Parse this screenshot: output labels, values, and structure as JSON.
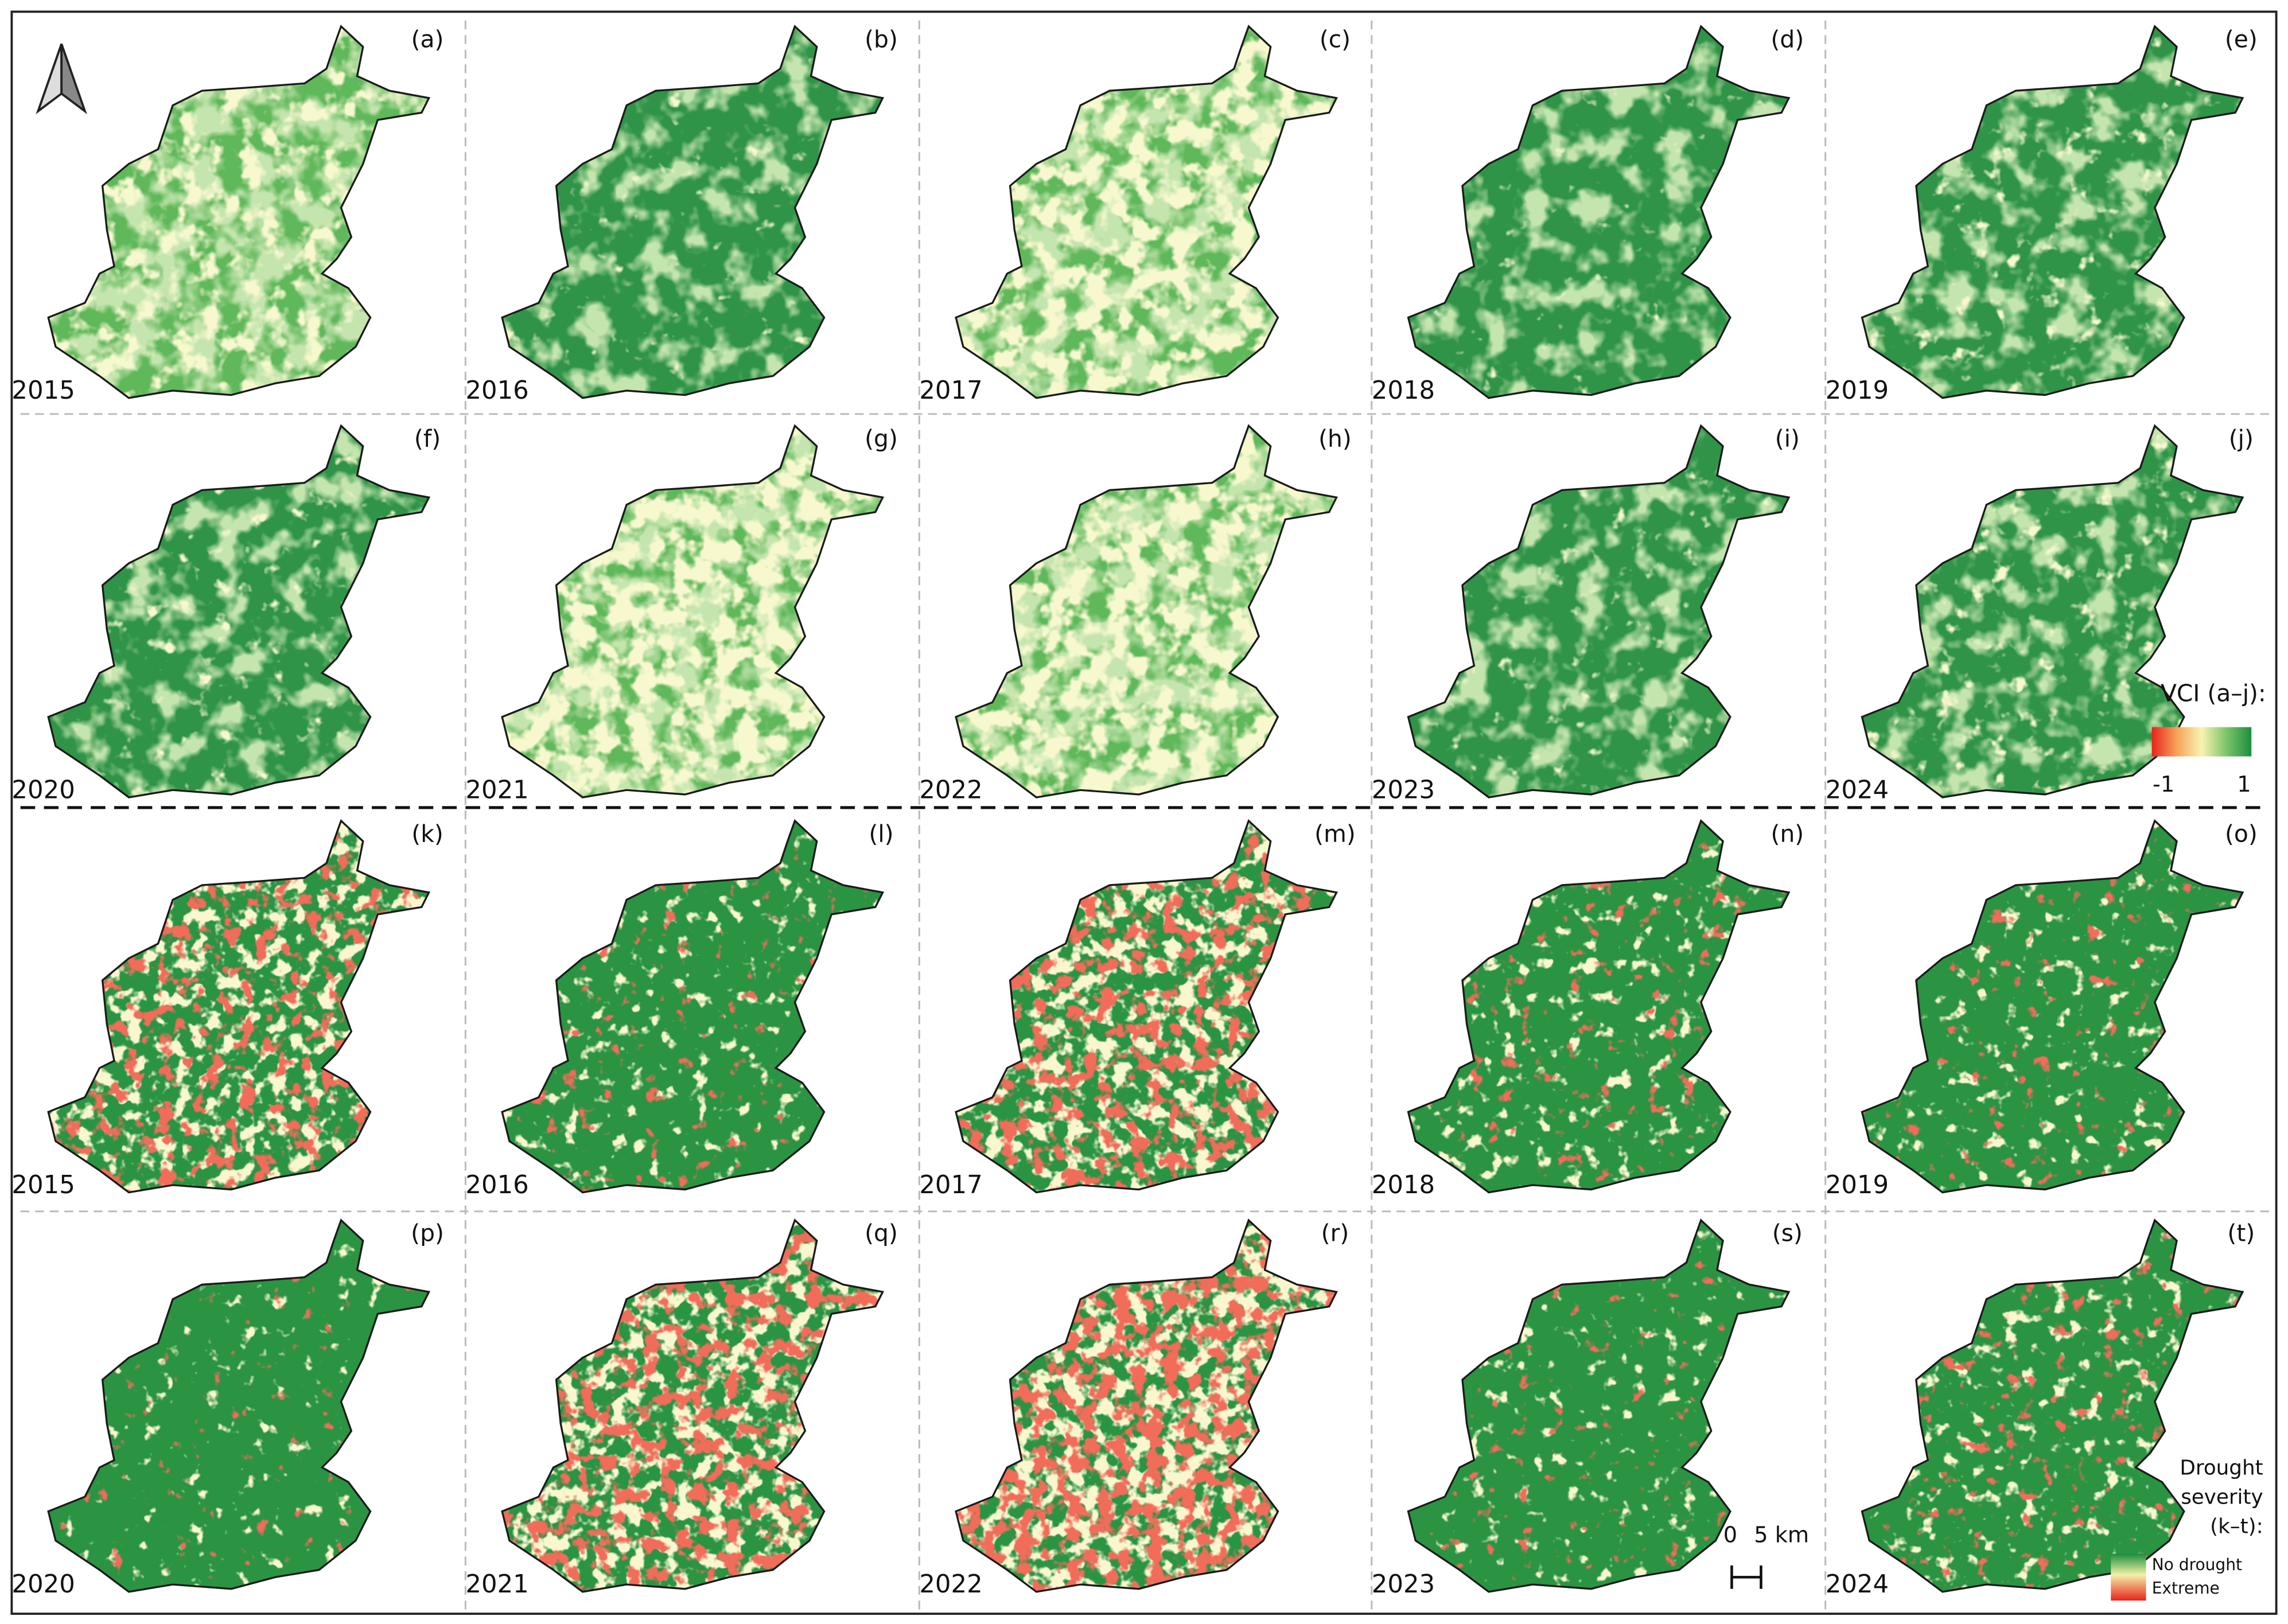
{
  "panels": [
    {
      "label": "(a)",
      "year": "2015"
    },
    {
      "label": "(b)",
      "year": "2016"
    },
    {
      "label": "(c)",
      "year": "2017"
    },
    {
      "label": "(d)",
      "year": "2018"
    },
    {
      "label": "(e)",
      "year": "2019"
    },
    {
      "label": "(f)",
      "year": "2020"
    },
    {
      "label": "(g)",
      "year": "2021"
    },
    {
      "label": "(h)",
      "year": "2022"
    },
    {
      "label": "(i)",
      "year": "2023"
    },
    {
      "label": "(j)",
      "year": "2024"
    },
    {
      "label": "(k)",
      "year": "2015"
    },
    {
      "label": "(l)",
      "year": "2016"
    },
    {
      "label": "(m)",
      "year": "2017"
    },
    {
      "label": "(n)",
      "year": "2018"
    },
    {
      "label": "(o)",
      "year": "2019"
    },
    {
      "label": "(p)",
      "year": "2020"
    },
    {
      "label": "(q)",
      "year": "2021"
    },
    {
      "label": "(r)",
      "year": "2022"
    },
    {
      "label": "(s)",
      "year": "2023"
    },
    {
      "label": "(t)",
      "year": "2024"
    }
  ],
  "vci_legend": {
    "title": "VCI (a–j):",
    "min": "-1",
    "max": "1"
  },
  "drought_legend": {
    "title_lines": [
      "Drought",
      "severity",
      "(k–t):"
    ],
    "high": "No drought",
    "low": "Extreme"
  },
  "scale_bar": {
    "start": "0",
    "end": "5 km"
  }
}
